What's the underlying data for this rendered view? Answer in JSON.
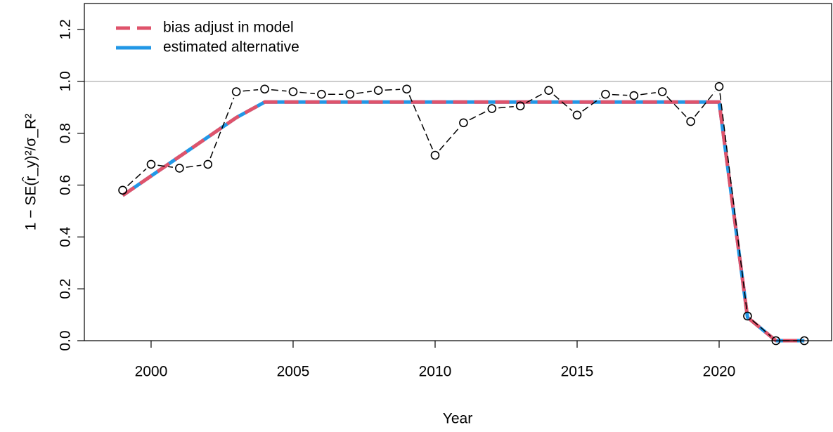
{
  "chart_data": {
    "type": "line",
    "xlabel": "Year",
    "ylabel": "1 − SE(r̂_y)²/σ_R²",
    "xlim": [
      1997.65,
      2023.96
    ],
    "ylim": [
      0,
      1.3
    ],
    "xticks": [
      2000,
      2005,
      2010,
      2015,
      2020
    ],
    "yticks": [
      {
        "value": 0,
        "label": "0.0"
      },
      {
        "value": 0.2,
        "label": "0.2"
      },
      {
        "value": 0.4,
        "label": "0.4"
      },
      {
        "value": 0.6,
        "label": "0.6"
      },
      {
        "value": 0.8,
        "label": "0.8"
      },
      {
        "value": 1,
        "label": "1.0"
      },
      {
        "value": 1.2,
        "label": "1.2"
      }
    ],
    "reference_line": 1,
    "legend": "top-left",
    "observed": {
      "color": "#000000",
      "x": [
        1999,
        2000,
        2001,
        2002,
        2003,
        2004,
        2005,
        2006,
        2007,
        2008,
        2009,
        2010,
        2011,
        2012,
        2013,
        2014,
        2015,
        2016,
        2017,
        2018,
        2019,
        2020,
        2021,
        2022,
        2023
      ],
      "values": [
        0.58,
        0.68,
        0.665,
        0.68,
        0.96,
        0.97,
        0.96,
        0.95,
        0.95,
        0.965,
        0.97,
        0.715,
        0.84,
        0.895,
        0.905,
        0.965,
        0.87,
        0.95,
        0.945,
        0.96,
        0.845,
        0.98,
        0.095,
        0,
        0
      ]
    },
    "series": [
      {
        "name": "bias adjust in model",
        "color": "#DF536B",
        "dashed": true,
        "x": [
          1999,
          2003,
          2004,
          2020,
          2021,
          2022,
          2023
        ],
        "values": [
          0.56,
          0.86,
          0.92,
          0.92,
          0.09,
          0,
          0
        ]
      },
      {
        "name": "estimated alternative",
        "color": "#2297E6",
        "dashed": false,
        "x": [
          1999,
          2003,
          2004,
          2020,
          2021,
          2022,
          2023
        ],
        "values": [
          0.56,
          0.86,
          0.92,
          0.92,
          0.09,
          0,
          0
        ]
      }
    ]
  }
}
